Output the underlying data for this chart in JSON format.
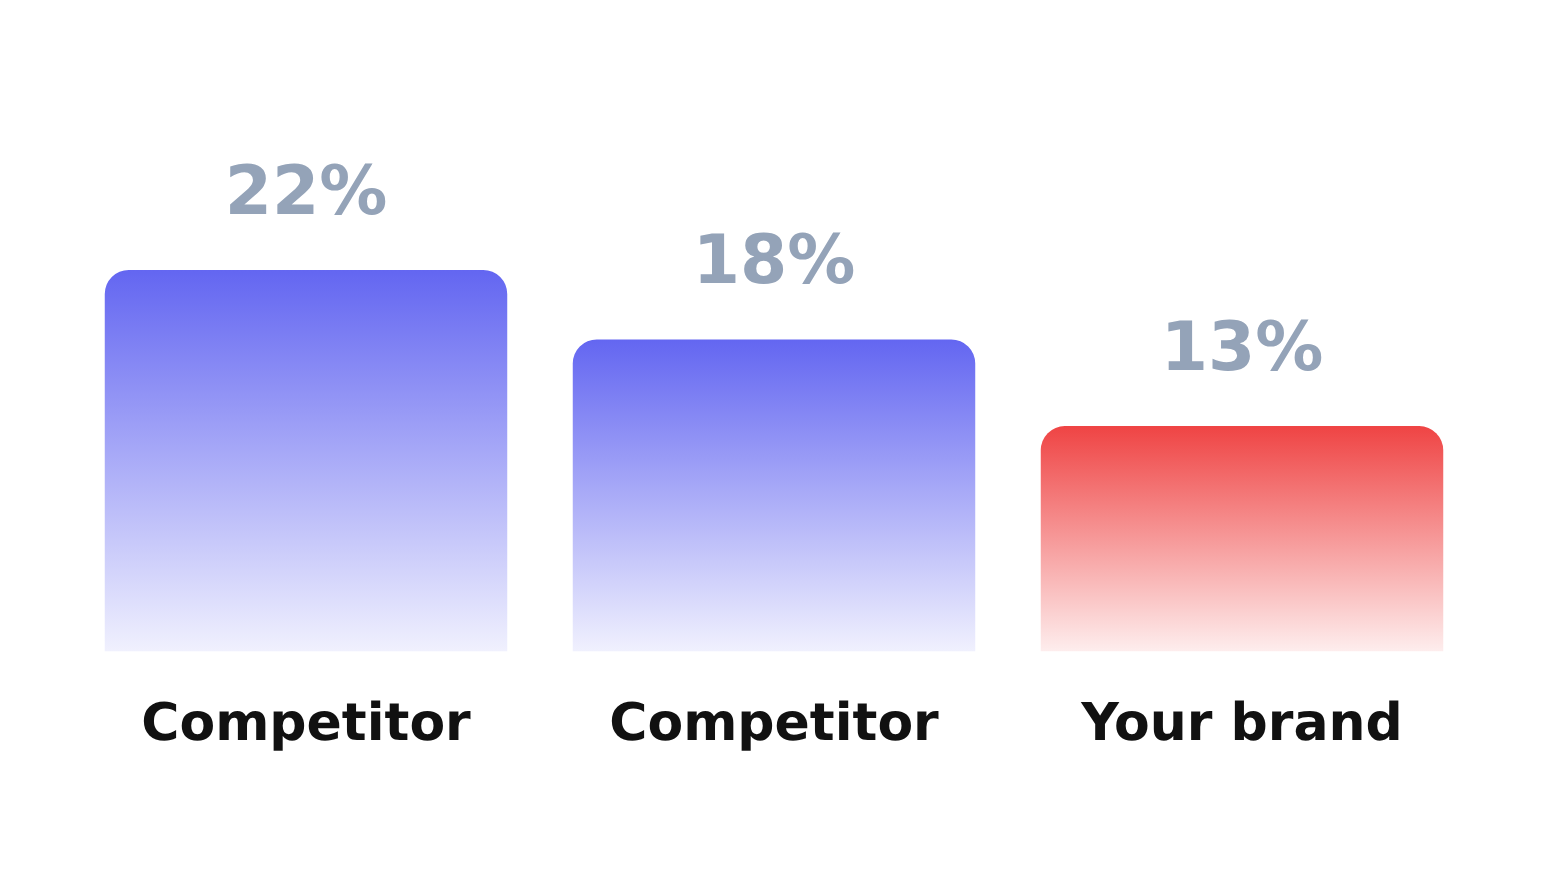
{
  "chart_data": {
    "type": "bar",
    "categories": [
      "Competitor",
      "Competitor",
      "Your brand"
    ],
    "values": [
      22,
      18,
      13
    ],
    "colors": [
      "#6366f1",
      "#6366f1",
      "#ef4444"
    ],
    "value_labels": [
      "22%",
      "18%",
      "13%"
    ],
    "grid": false,
    "legend": false,
    "tick_labels": "x"
  }
}
